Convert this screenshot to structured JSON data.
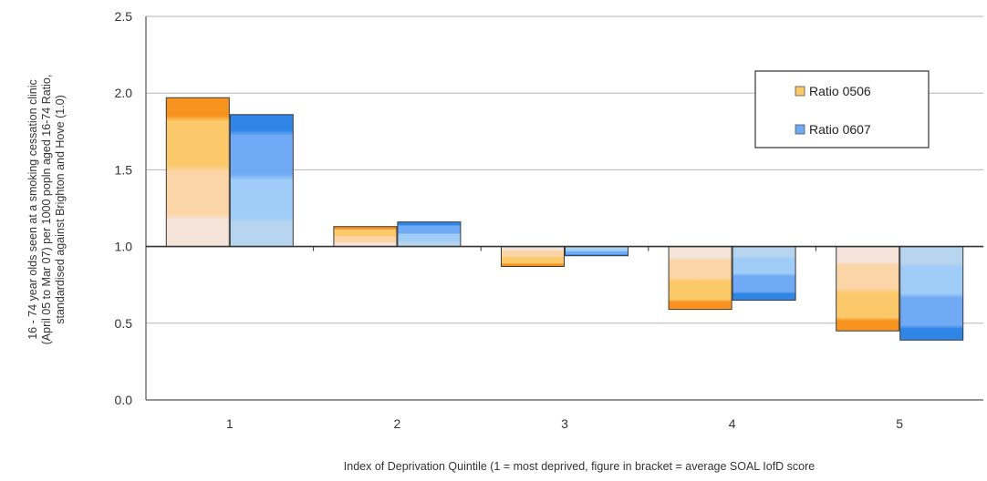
{
  "chart_data": {
    "type": "bar",
    "title": "",
    "xlabel": "Index of Deprivation Quintile  (1 = most deprived, figure in bracket = average SOAL IofD score",
    "ylabel_lines": [
      "16 - 74 year olds seen at a smoking cessation clinic",
      "(April 05 to Mar 07) per 1000 popln aged 16-74 Ratio,",
      "standardised against Brighton and Hove (1.0)"
    ],
    "categories": [
      "1",
      "2",
      "3",
      "4",
      "5"
    ],
    "baseline": 1.0,
    "ylim": [
      0,
      2.5
    ],
    "yticks": [
      "0.0",
      "0.5",
      "1.0",
      "1.5",
      "2.0",
      "2.5"
    ],
    "grid": true,
    "legend_position": "top-right",
    "series": [
      {
        "name": "Ratio 0506",
        "values": [
          1.97,
          1.13,
          0.87,
          0.59,
          0.45
        ]
      },
      {
        "name": "Ratio 0607",
        "values": [
          1.86,
          1.16,
          0.94,
          0.65,
          0.39
        ]
      }
    ],
    "colors": {
      "ratio_0506": [
        "#f7931e",
        "#fcc96a",
        "#fbd5a6",
        "#f3e3d8"
      ],
      "ratio_0607": [
        "#2f86e6",
        "#70a9f4",
        "#9fcdf8",
        "#b7d5ee"
      ],
      "grid": "#b5b5b5",
      "axis": "#555555"
    }
  }
}
